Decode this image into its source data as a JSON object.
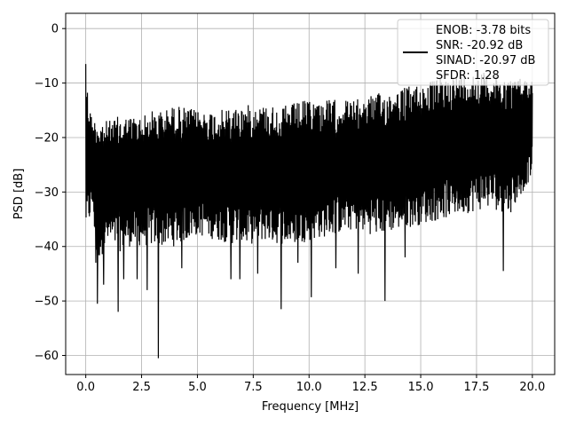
{
  "chart_data": {
    "type": "line",
    "title": "",
    "xlabel": "Frequency [MHz]",
    "ylabel": "PSD [dB]",
    "xlim": [
      -0.9,
      21.0
    ],
    "ylim": [
      -63.5,
      2.8
    ],
    "x_ticks": [
      0.0,
      2.5,
      5.0,
      7.5,
      10.0,
      12.5,
      15.0,
      17.5,
      20.0
    ],
    "x_tick_labels": [
      "0.0",
      "2.5",
      "5.0",
      "7.5",
      "10.0",
      "12.5",
      "15.0",
      "17.5",
      "20.0"
    ],
    "y_ticks": [
      0,
      -10,
      -20,
      -30,
      -40,
      -50,
      -60
    ],
    "y_tick_labels": [
      "0",
      "−10",
      "−20",
      "−30",
      "−40",
      "−50",
      "−60"
    ],
    "grid": true,
    "legend_position": "top-right",
    "line_color": "#000000",
    "series": [
      {
        "name": "ENOB: -3.78 bits\nSNR: -20.92 dB\nSINAD: -20.97 dB\nSFDR: 1.28",
        "x_range": [
          0.0,
          20.0
        ],
        "envelope": [
          {
            "x": 0.0,
            "top": -6.5,
            "bottom": -37.5
          },
          {
            "x": 0.1,
            "top": -12,
            "bottom": -37
          },
          {
            "x": 0.3,
            "top": -17,
            "bottom": -33
          },
          {
            "x": 0.5,
            "top": -16,
            "bottom": -43
          },
          {
            "x": 1.0,
            "top": -17,
            "bottom": -40
          },
          {
            "x": 1.5,
            "top": -16,
            "bottom": -41
          },
          {
            "x": 2.0,
            "top": -16,
            "bottom": -40
          },
          {
            "x": 2.5,
            "top": -16,
            "bottom": -40
          },
          {
            "x": 3.0,
            "top": -15,
            "bottom": -40
          },
          {
            "x": 3.5,
            "top": -15,
            "bottom": -40
          },
          {
            "x": 4.0,
            "top": -14,
            "bottom": -40
          },
          {
            "x": 5.0,
            "top": -15,
            "bottom": -38
          },
          {
            "x": 6.0,
            "top": -15,
            "bottom": -39
          },
          {
            "x": 7.0,
            "top": -14,
            "bottom": -40
          },
          {
            "x": 8.0,
            "top": -14,
            "bottom": -39
          },
          {
            "x": 9.0,
            "top": -14,
            "bottom": -40
          },
          {
            "x": 10.0,
            "top": -13,
            "bottom": -39
          },
          {
            "x": 11.0,
            "top": -13,
            "bottom": -38
          },
          {
            "x": 12.0,
            "top": -13,
            "bottom": -37
          },
          {
            "x": 13.0,
            "top": -12,
            "bottom": -38
          },
          {
            "x": 14.0,
            "top": -11,
            "bottom": -37
          },
          {
            "x": 15.0,
            "top": -10,
            "bottom": -36
          },
          {
            "x": 16.0,
            "top": -9,
            "bottom": -35
          },
          {
            "x": 17.0,
            "top": -8,
            "bottom": -34
          },
          {
            "x": 18.0,
            "top": -8,
            "bottom": -33
          },
          {
            "x": 19.0,
            "top": -9,
            "bottom": -34
          },
          {
            "x": 20.0,
            "top": -9,
            "bottom": -27
          }
        ],
        "dips": [
          {
            "x": 0.45,
            "y": -43
          },
          {
            "x": 0.52,
            "y": -50.5
          },
          {
            "x": 0.8,
            "y": -47
          },
          {
            "x": 1.45,
            "y": -52
          },
          {
            "x": 1.7,
            "y": -46
          },
          {
            "x": 2.3,
            "y": -46
          },
          {
            "x": 2.75,
            "y": -48
          },
          {
            "x": 3.25,
            "y": -60.5
          },
          {
            "x": 4.3,
            "y": -44
          },
          {
            "x": 6.5,
            "y": -46
          },
          {
            "x": 6.9,
            "y": -46
          },
          {
            "x": 7.7,
            "y": -45
          },
          {
            "x": 8.75,
            "y": -51.5
          },
          {
            "x": 9.5,
            "y": -43
          },
          {
            "x": 10.1,
            "y": -49.3
          },
          {
            "x": 11.2,
            "y": -44
          },
          {
            "x": 12.2,
            "y": -45
          },
          {
            "x": 13.4,
            "y": -50
          },
          {
            "x": 14.3,
            "y": -42
          },
          {
            "x": 18.7,
            "y": -44.5
          }
        ]
      }
    ]
  }
}
